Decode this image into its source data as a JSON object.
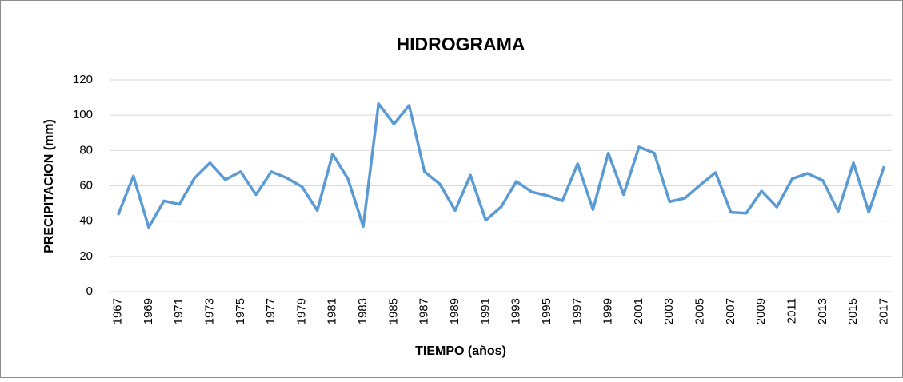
{
  "chart_data": {
    "type": "line",
    "title": "HIDROGRAMA",
    "xlabel": "TIEMPO (años)",
    "ylabel": "PRECIPITACION (mm)",
    "categories": [
      "1967",
      null,
      "1969",
      null,
      "1971",
      null,
      "1973",
      null,
      "1975",
      null,
      "1977",
      null,
      "1979",
      null,
      "1981",
      null,
      "1983",
      null,
      "1985",
      null,
      "1987",
      null,
      "1989",
      null,
      "1991",
      null,
      "1993",
      null,
      "1995",
      null,
      "1997",
      null,
      "1999",
      null,
      "2001",
      null,
      "2003",
      null,
      "2005",
      null,
      "2007",
      null,
      "2009",
      null,
      "2011",
      null,
      "2013",
      null,
      "2015",
      null,
      "2017"
    ],
    "series": [
      {
        "name": "PRECIPITACION",
        "color": "#5b9bd5",
        "values": [
          43.5,
          65.5,
          36.5,
          51.5,
          49.5,
          64.5,
          73,
          63.5,
          68,
          55,
          68,
          64.5,
          59.5,
          46,
          78,
          64,
          37,
          106.5,
          95,
          105.5,
          68,
          61,
          46,
          66,
          40.5,
          48,
          62.5,
          56.5,
          54.5,
          51.5,
          72.5,
          46.5,
          78.5,
          55,
          82,
          78.5,
          51,
          53,
          60.5,
          67.5,
          45,
          44.5,
          57,
          48,
          64,
          67,
          63,
          45.5,
          73,
          45,
          71
        ]
      }
    ],
    "ylim": [
      0,
      120
    ],
    "yticks": [
      0,
      20,
      40,
      60,
      80,
      100,
      120
    ],
    "grid": true
  }
}
